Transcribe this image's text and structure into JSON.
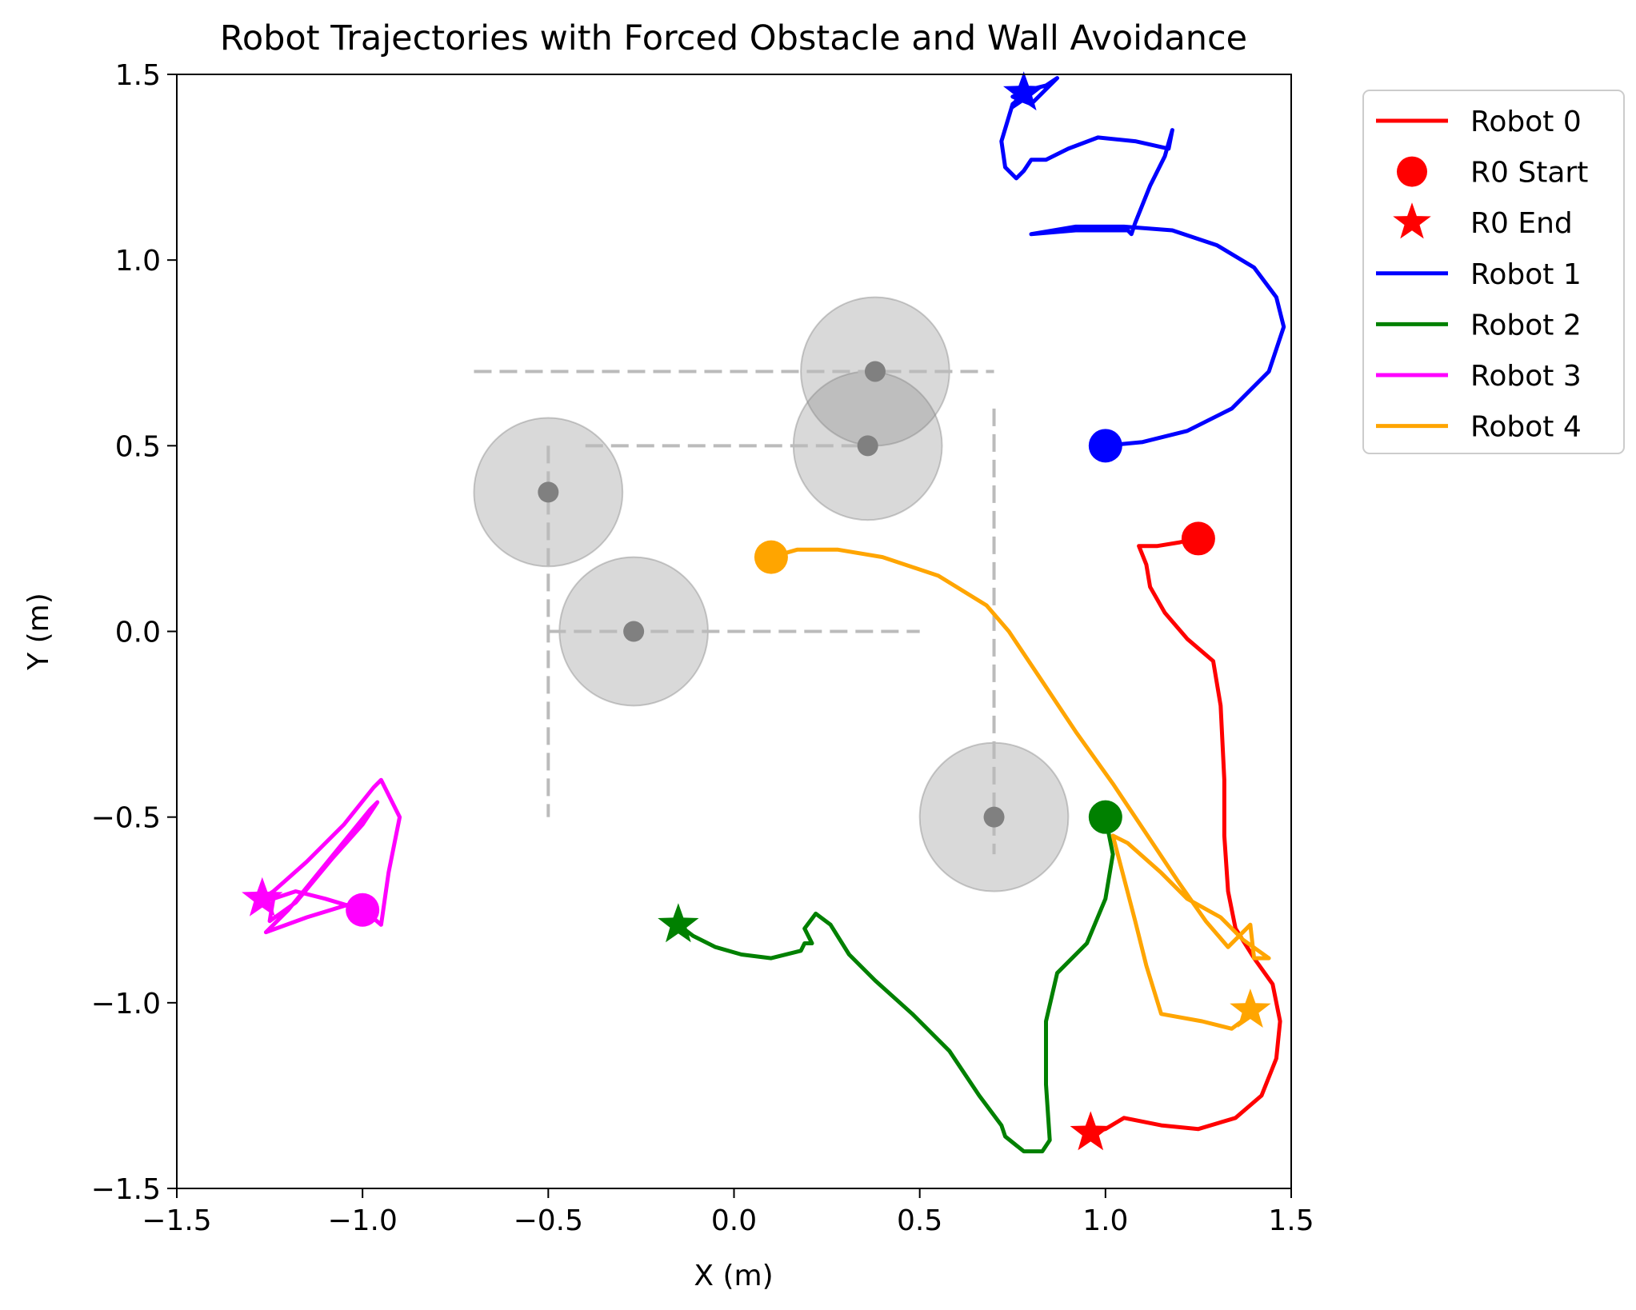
{
  "chart_data": {
    "type": "line",
    "title": "Robot Trajectories with Forced Obstacle and Wall Avoidance",
    "xlabel": "X (m)",
    "ylabel": "Y (m)",
    "xlim": [
      -1.5,
      1.5
    ],
    "ylim": [
      -1.5,
      1.5
    ],
    "xticks": [
      -1.5,
      -1.0,
      -0.5,
      0.0,
      0.5,
      1.0,
      1.5
    ],
    "yticks": [
      -1.5,
      -1.0,
      -0.5,
      0.0,
      0.5,
      1.0,
      1.5
    ],
    "xtick_labels": [
      "−1.5",
      "−1.0",
      "−0.5",
      "0.0",
      "0.5",
      "1.0",
      "1.5"
    ],
    "ytick_labels": [
      "−1.5",
      "−1.0",
      "−0.5",
      "0.0",
      "0.5",
      "1.0",
      "1.5"
    ],
    "grid": false,
    "legend_position": "outside upper right",
    "legend": [
      {
        "label": "Robot 0",
        "kind": "line",
        "color": "#ff0000"
      },
      {
        "label": "R0 Start",
        "kind": "circle",
        "color": "#ff0000"
      },
      {
        "label": "R0 End",
        "kind": "star",
        "color": "#ff0000"
      },
      {
        "label": "Robot 1",
        "kind": "line",
        "color": "#0000ff"
      },
      {
        "label": "Robot 2",
        "kind": "line",
        "color": "#008000"
      },
      {
        "label": "Robot 3",
        "kind": "line",
        "color": "#ff00ff"
      },
      {
        "label": "Robot 4",
        "kind": "line",
        "color": "#ffa500"
      }
    ],
    "obstacles": [
      {
        "x": 0.38,
        "y": 0.7,
        "r": 0.2
      },
      {
        "x": 0.36,
        "y": 0.5,
        "r": 0.2
      },
      {
        "x": -0.5,
        "y": 0.375,
        "r": 0.2
      },
      {
        "x": -0.27,
        "y": 0.0,
        "r": 0.2
      },
      {
        "x": 0.7,
        "y": -0.5,
        "r": 0.2
      }
    ],
    "obstacle_color": "#808080",
    "walls": [
      {
        "x": [
          -0.7,
          0.7
        ],
        "y": [
          0.7,
          0.7
        ]
      },
      {
        "x": [
          -0.4,
          0.36
        ],
        "y": [
          0.5,
          0.5
        ]
      },
      {
        "x": [
          -0.5,
          0.5
        ],
        "y": [
          0.0,
          0.0
        ]
      },
      {
        "x": [
          -0.5,
          -0.5
        ],
        "y": [
          0.5,
          -0.5
        ]
      },
      {
        "x": [
          0.7,
          0.7
        ],
        "y": [
          0.6,
          -0.6
        ]
      }
    ],
    "wall_color": "#bbbbbb",
    "series": [
      {
        "name": "Robot 0",
        "color": "#ff0000",
        "start": [
          1.25,
          0.25
        ],
        "end": [
          0.96,
          -1.35
        ],
        "x": [
          1.25,
          1.2,
          1.14,
          1.09,
          1.11,
          1.12,
          1.16,
          1.22,
          1.29,
          1.31,
          1.32,
          1.32,
          1.33,
          1.35,
          1.4,
          1.45,
          1.47,
          1.46,
          1.42,
          1.35,
          1.25,
          1.15,
          1.05,
          1.0,
          0.96
        ],
        "y": [
          0.25,
          0.24,
          0.23,
          0.23,
          0.18,
          0.12,
          0.05,
          -0.02,
          -0.08,
          -0.2,
          -0.4,
          -0.55,
          -0.7,
          -0.8,
          -0.88,
          -0.95,
          -1.05,
          -1.15,
          -1.25,
          -1.31,
          -1.34,
          -1.33,
          -1.31,
          -1.34,
          -1.35
        ]
      },
      {
        "name": "Robot 1",
        "color": "#0000ff",
        "start": [
          1.0,
          0.5
        ],
        "end": [
          0.78,
          1.45
        ],
        "x": [
          1.0,
          1.1,
          1.22,
          1.34,
          1.44,
          1.48,
          1.46,
          1.4,
          1.3,
          1.18,
          1.05,
          0.92,
          0.8,
          0.92,
          1.06,
          1.07,
          1.08,
          1.12,
          1.16,
          1.18,
          1.17,
          1.08,
          0.98,
          0.9,
          0.84,
          0.8,
          0.78,
          0.76,
          0.73,
          0.72,
          0.75,
          0.8,
          0.84,
          0.87,
          0.8,
          0.75,
          0.78
        ],
        "y": [
          0.5,
          0.51,
          0.54,
          0.6,
          0.7,
          0.82,
          0.9,
          0.98,
          1.04,
          1.08,
          1.09,
          1.09,
          1.07,
          1.08,
          1.08,
          1.07,
          1.1,
          1.2,
          1.28,
          1.35,
          1.3,
          1.32,
          1.33,
          1.3,
          1.27,
          1.27,
          1.24,
          1.22,
          1.25,
          1.32,
          1.42,
          1.46,
          1.47,
          1.49,
          1.42,
          1.44,
          1.45
        ]
      },
      {
        "name": "Robot 2",
        "color": "#008000",
        "start": [
          1.0,
          -0.5
        ],
        "end": [
          -0.15,
          -0.79
        ],
        "x": [
          1.0,
          1.02,
          1.0,
          0.95,
          0.87,
          0.84,
          0.84,
          0.85,
          0.83,
          0.78,
          0.73,
          0.72,
          0.66,
          0.58,
          0.48,
          0.38,
          0.31,
          0.26,
          0.22,
          0.19,
          0.21,
          0.19,
          0.18,
          0.1,
          0.02,
          -0.05,
          -0.11,
          -0.15
        ],
        "y": [
          -0.5,
          -0.6,
          -0.72,
          -0.84,
          -0.92,
          -1.05,
          -1.22,
          -1.37,
          -1.4,
          -1.4,
          -1.36,
          -1.33,
          -1.25,
          -1.13,
          -1.03,
          -0.94,
          -0.87,
          -0.79,
          -0.76,
          -0.8,
          -0.84,
          -0.84,
          -0.86,
          -0.88,
          -0.87,
          -0.85,
          -0.82,
          -0.79
        ]
      },
      {
        "name": "Robot 3",
        "color": "#ff00ff",
        "start": [
          -1.0,
          -0.75
        ],
        "end": [
          -1.27,
          -0.72
        ],
        "x": [
          -1.0,
          -1.1,
          -1.18,
          -1.24,
          -1.25,
          -1.18,
          -1.08,
          -1.0,
          -0.96,
          -0.98,
          -1.2,
          -1.25,
          -1.26,
          -1.15,
          -1.02,
          -0.95,
          -0.93,
          -0.9,
          -0.95,
          -0.97,
          -1.05,
          -1.15,
          -1.24,
          -1.27
        ],
        "y": [
          -0.75,
          -0.72,
          -0.7,
          -0.72,
          -0.78,
          -0.73,
          -0.61,
          -0.52,
          -0.46,
          -0.48,
          -0.75,
          -0.8,
          -0.81,
          -0.77,
          -0.73,
          -0.79,
          -0.65,
          -0.5,
          -0.4,
          -0.42,
          -0.52,
          -0.62,
          -0.7,
          -0.72
        ]
      },
      {
        "name": "Robot 4",
        "color": "#ffa500",
        "start": [
          0.1,
          0.2
        ],
        "end": [
          1.39,
          -1.02
        ],
        "x": [
          0.1,
          0.17,
          0.28,
          0.4,
          0.55,
          0.68,
          0.74,
          0.82,
          0.92,
          1.02,
          1.12,
          1.2,
          1.27,
          1.33,
          1.39,
          1.4,
          1.44,
          1.37,
          1.31,
          1.22,
          1.15,
          1.06,
          1.02,
          1.08,
          1.11,
          1.15,
          1.26,
          1.34,
          1.38,
          1.39
        ],
        "y": [
          0.2,
          0.22,
          0.22,
          0.2,
          0.15,
          0.07,
          0.0,
          -0.12,
          -0.27,
          -0.41,
          -0.56,
          -0.68,
          -0.78,
          -0.85,
          -0.79,
          -0.88,
          -0.88,
          -0.83,
          -0.77,
          -0.72,
          -0.65,
          -0.57,
          -0.55,
          -0.78,
          -0.9,
          -1.03,
          -1.05,
          -1.07,
          -1.04,
          -1.02
        ]
      }
    ]
  }
}
